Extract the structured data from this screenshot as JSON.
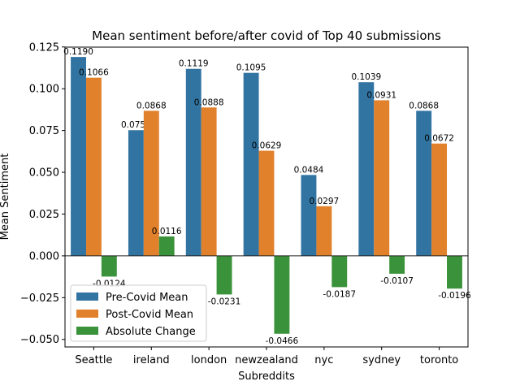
{
  "chart_data": {
    "type": "bar",
    "title": "Mean sentiment before/after covid of Top 40 submissions",
    "xlabel": "Subreddits",
    "ylabel": "Mean Sentiment",
    "categories": [
      "Seattle",
      "ireland",
      "london",
      "newzealand",
      "nyc",
      "sydney",
      "toronto"
    ],
    "series": [
      {
        "name": "Pre-Covid Mean",
        "color": "#3274a1",
        "values": [
          0.119,
          0.0752,
          0.1119,
          0.1095,
          0.0484,
          0.1039,
          0.0868
        ],
        "labels": [
          "0.1190",
          "0.0752",
          "0.1119",
          "0.1095",
          "0.0484",
          "0.1039",
          "0.0868"
        ]
      },
      {
        "name": "Post-Covid Mean",
        "color": "#e1812c",
        "values": [
          0.1066,
          0.0868,
          0.0888,
          0.0629,
          0.0297,
          0.0931,
          0.0672
        ],
        "labels": [
          "0.1066",
          "0.0868",
          "0.0888",
          "0.0629",
          "0.0297",
          "0.0931",
          "0.0672"
        ]
      },
      {
        "name": "Absolute Change",
        "color": "#3a923a",
        "values": [
          -0.0124,
          0.0116,
          -0.0231,
          -0.0466,
          -0.0187,
          -0.0107,
          -0.0196
        ],
        "labels": [
          "-0.0124",
          "0.0116",
          "-0.0231",
          "-0.0466",
          "-0.0187",
          "-0.0107",
          "-0.0196"
        ]
      }
    ],
    "ylim": [
      -0.0545,
      0.1249
    ],
    "yticks": [
      -0.05,
      -0.025,
      0.0,
      0.025,
      0.05,
      0.075,
      0.1,
      0.125
    ],
    "ytick_labels": [
      "−0.050",
      "−0.025",
      "0.000",
      "0.025",
      "0.050",
      "0.075",
      "0.100",
      "0.125"
    ],
    "grid": false,
    "legend_position": "lower-left"
  }
}
